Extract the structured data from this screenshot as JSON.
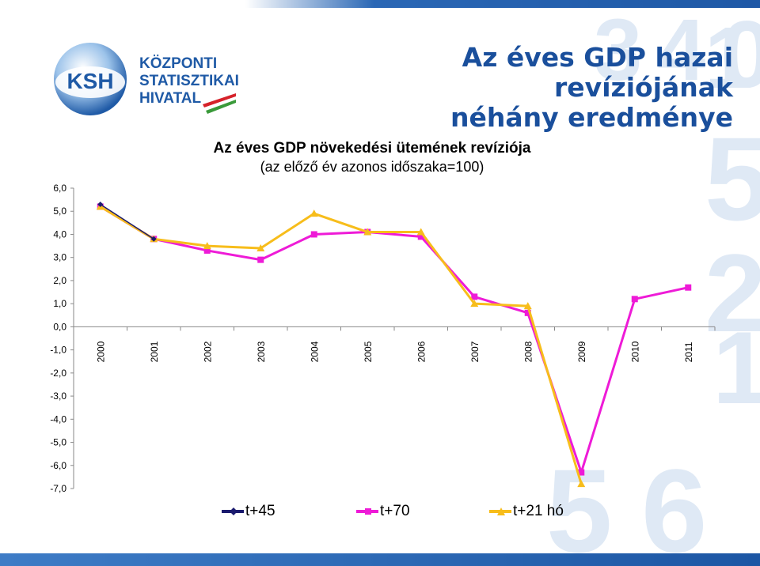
{
  "slide": {
    "title_line1": "Az éves GDP hazai revíziójának",
    "title_line2": "néhány eredménye",
    "colors": {
      "title": "#1a4f9c",
      "bar": "#1e58a6",
      "watermark": "#dfe9f5"
    }
  },
  "logo": {
    "abbr": "KSH",
    "line1": "KÖZPONTI",
    "line2": "STATISZTIKAI",
    "line3": "HIVATAL",
    "colors": {
      "blue": "#1f5aa6",
      "red": "#d6222a",
      "green": "#3a9a3a"
    }
  },
  "watermark": {
    "digits": [
      "3",
      "4",
      "1",
      "0",
      "5",
      "2",
      "1",
      "5",
      "6"
    ]
  },
  "chart_data": {
    "type": "line",
    "title": "Az éves GDP növekedési ütemének revíziója",
    "subtitle": "(az előző év azonos időszaka=100)",
    "categories": [
      "2000",
      "2001",
      "2002",
      "2003",
      "2004",
      "2005",
      "2006",
      "2007",
      "2008",
      "2009",
      "2010",
      "2011"
    ],
    "y_ticks": [
      "6,0",
      "5,0",
      "4,0",
      "3,0",
      "2,0",
      "1,0",
      "0,0",
      "-1,0",
      "-2,0",
      "-3,0",
      "-4,0",
      "-5,0",
      "-6,0",
      "-7,0"
    ],
    "ylim": [
      -7,
      6
    ],
    "grid": false,
    "legend_position": "bottom",
    "series": [
      {
        "name": "t+45",
        "color": "#1a1a6e",
        "marker": "diamond",
        "values": [
          5.3,
          3.8,
          null,
          null,
          null,
          null,
          null,
          null,
          null,
          null,
          null,
          null
        ]
      },
      {
        "name": "t+70",
        "color": "#ee1bd7",
        "marker": "square",
        "values": [
          5.2,
          3.8,
          3.3,
          2.9,
          4.0,
          4.1,
          3.9,
          1.3,
          0.6,
          -6.3,
          1.2,
          1.7
        ]
      },
      {
        "name": "t+21 hó",
        "color": "#f7bd1b",
        "marker": "triangle",
        "values": [
          5.2,
          3.8,
          3.5,
          3.4,
          4.9,
          4.1,
          4.1,
          1.0,
          0.9,
          -6.8,
          null,
          null
        ]
      }
    ]
  }
}
